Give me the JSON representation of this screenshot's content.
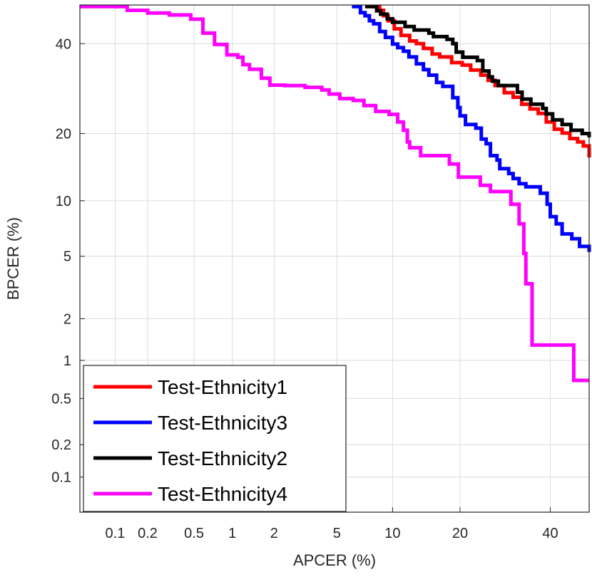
{
  "chart_data": {
    "type": "line",
    "title": "",
    "xlabel": "APCER (%)",
    "ylabel": "BPCER (%)",
    "x_scale": "normal-deviate (probit)",
    "y_scale": "normal-deviate (probit)",
    "xlim": [
      0.045,
      50
    ],
    "ylim": [
      0.045,
      50
    ],
    "grid": true,
    "legend_position": "bottom-left",
    "x_ticks": [
      {
        "value": 0.1,
        "label": "0.1"
      },
      {
        "value": 0.2,
        "label": "0.2"
      },
      {
        "value": 0.5,
        "label": "0.5"
      },
      {
        "value": 1,
        "label": "1"
      },
      {
        "value": 2,
        "label": "2"
      },
      {
        "value": 5,
        "label": "5"
      },
      {
        "value": 10,
        "label": "10"
      },
      {
        "value": 20,
        "label": "20"
      },
      {
        "value": 40,
        "label": "40"
      }
    ],
    "y_ticks": [
      {
        "value": 0.1,
        "label": "0.1"
      },
      {
        "value": 0.2,
        "label": "0.2"
      },
      {
        "value": 0.5,
        "label": "0.5"
      },
      {
        "value": 1,
        "label": "1"
      },
      {
        "value": 2,
        "label": "2"
      },
      {
        "value": 5,
        "label": "5"
      },
      {
        "value": 10,
        "label": "10"
      },
      {
        "value": 20,
        "label": "20"
      },
      {
        "value": 40,
        "label": "40"
      }
    ],
    "series": [
      {
        "name": "Test-Ethnicity1",
        "color": "#ff0000",
        "points": [
          [
            7.8,
            49.6
          ],
          [
            8.6,
            48.6
          ],
          [
            9.0,
            47.2
          ],
          [
            9.5,
            45.9
          ],
          [
            10.2,
            43.8
          ],
          [
            11.0,
            42.1
          ],
          [
            12.1,
            40.7
          ],
          [
            13.0,
            40.0
          ],
          [
            14.0,
            38.8
          ],
          [
            15.3,
            37.4
          ],
          [
            16.5,
            36.7
          ],
          [
            18.5,
            35.3
          ],
          [
            20.4,
            34.7
          ],
          [
            22.0,
            33.5
          ],
          [
            24.0,
            32.3
          ],
          [
            25.5,
            31.1
          ],
          [
            27.0,
            29.9
          ],
          [
            29.0,
            28.3
          ],
          [
            31.0,
            27.3
          ],
          [
            33.0,
            25.8
          ],
          [
            35.0,
            24.8
          ],
          [
            37.0,
            23.9
          ],
          [
            39.0,
            22.2
          ],
          [
            41.0,
            20.8
          ],
          [
            43.0,
            20.1
          ],
          [
            45.0,
            19.1
          ],
          [
            47.0,
            18.5
          ],
          [
            48.5,
            17.8
          ],
          [
            50.0,
            15.9
          ]
        ]
      },
      {
        "name": "Test-Ethnicity3",
        "color": "#0000ff",
        "points": [
          [
            6.1,
            49.6
          ],
          [
            6.8,
            48.0
          ],
          [
            7.2,
            47.2
          ],
          [
            7.6,
            45.9
          ],
          [
            8.0,
            45.1
          ],
          [
            8.6,
            43.1
          ],
          [
            9.2,
            41.6
          ],
          [
            10.0,
            39.9
          ],
          [
            10.6,
            39.0
          ],
          [
            11.3,
            38.1
          ],
          [
            12.0,
            36.7
          ],
          [
            13.0,
            35.0
          ],
          [
            14.0,
            33.6
          ],
          [
            14.8,
            32.3
          ],
          [
            16.0,
            30.6
          ],
          [
            17.0,
            29.7
          ],
          [
            18.7,
            27.2
          ],
          [
            19.6,
            25.1
          ],
          [
            20.0,
            23.4
          ],
          [
            21.0,
            21.7
          ],
          [
            23.0,
            21.0
          ],
          [
            24.1,
            19.0
          ],
          [
            25.1,
            18.2
          ],
          [
            26.0,
            16.2
          ],
          [
            27.4,
            15.5
          ],
          [
            28.0,
            14.2
          ],
          [
            30.0,
            13.5
          ],
          [
            31.0,
            12.8
          ],
          [
            32.4,
            12.1
          ],
          [
            34.0,
            11.7
          ],
          [
            37.5,
            10.9
          ],
          [
            39.2,
            9.6
          ],
          [
            40.0,
            8.3
          ],
          [
            41.5,
            7.6
          ],
          [
            43.0,
            6.7
          ],
          [
            45.5,
            6.3
          ],
          [
            47.5,
            5.7
          ],
          [
            50.0,
            5.3
          ]
        ]
      },
      {
        "name": "Test-Ethnicity2",
        "color": "#000000",
        "points": [
          [
            7.2,
            49.6
          ],
          [
            8.3,
            48.5
          ],
          [
            8.7,
            47.6
          ],
          [
            9.4,
            46.4
          ],
          [
            10.0,
            45.5
          ],
          [
            11.5,
            44.4
          ],
          [
            12.7,
            43.5
          ],
          [
            14.8,
            42.7
          ],
          [
            15.5,
            41.8
          ],
          [
            17.7,
            41.1
          ],
          [
            18.7,
            40.0
          ],
          [
            19.3,
            37.9
          ],
          [
            20.5,
            36.6
          ],
          [
            23.3,
            35.8
          ],
          [
            24.4,
            33.3
          ],
          [
            25.7,
            31.9
          ],
          [
            26.4,
            30.9
          ],
          [
            27.7,
            29.9
          ],
          [
            32.0,
            28.4
          ],
          [
            33.1,
            26.9
          ],
          [
            35.2,
            25.8
          ],
          [
            38.1,
            24.9
          ],
          [
            39.0,
            23.8
          ],
          [
            40.6,
            22.6
          ],
          [
            43.0,
            21.7
          ],
          [
            45.3,
            20.6
          ],
          [
            48.2,
            20.0
          ],
          [
            50.0,
            19.3
          ]
        ]
      },
      {
        "name": "Test-Ethnicity4",
        "color": "#ff00ff",
        "points": [
          [
            0.045,
            49.6
          ],
          [
            0.13,
            48.6
          ],
          [
            0.2,
            47.9
          ],
          [
            0.31,
            47.4
          ],
          [
            0.47,
            46.3
          ],
          [
            0.59,
            42.7
          ],
          [
            0.73,
            39.8
          ],
          [
            0.91,
            37.2
          ],
          [
            1.1,
            36.6
          ],
          [
            1.2,
            34.8
          ],
          [
            1.34,
            33.7
          ],
          [
            1.63,
            31.6
          ],
          [
            1.87,
            30.0
          ],
          [
            2.36,
            29.9
          ],
          [
            3.2,
            29.5
          ],
          [
            4.07,
            28.9
          ],
          [
            4.5,
            28.0
          ],
          [
            5.2,
            27.0
          ],
          [
            6.2,
            26.6
          ],
          [
            7.1,
            25.5
          ],
          [
            8.2,
            24.3
          ],
          [
            9.6,
            23.7
          ],
          [
            10.6,
            22.2
          ],
          [
            11.3,
            20.6
          ],
          [
            11.8,
            18.5
          ],
          [
            12.1,
            17.5
          ],
          [
            13.6,
            16.2
          ],
          [
            14.1,
            16.2
          ],
          [
            18.1,
            14.9
          ],
          [
            19.7,
            13.0
          ],
          [
            23.9,
            11.9
          ],
          [
            26.0,
            11.1
          ],
          [
            30.5,
            9.6
          ],
          [
            32.4,
            7.6
          ],
          [
            33.5,
            5.2
          ],
          [
            34.0,
            3.4
          ],
          [
            35.5,
            1.3
          ],
          [
            40.0,
            1.3
          ],
          [
            46.0,
            0.7
          ],
          [
            50.0,
            0.7
          ]
        ]
      }
    ]
  }
}
